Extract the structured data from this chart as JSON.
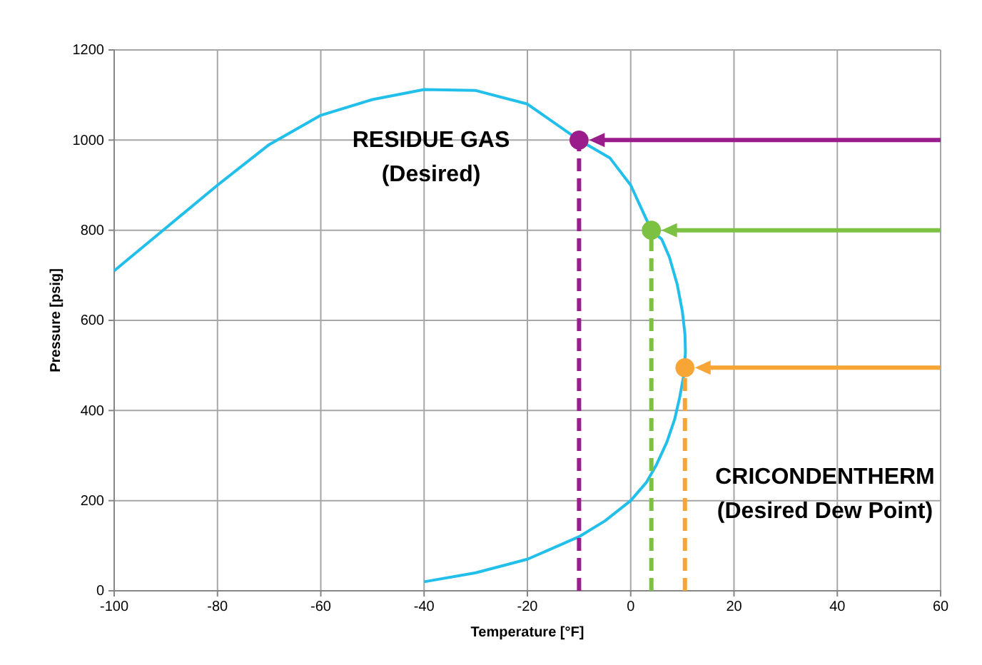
{
  "chart_data": {
    "type": "line",
    "xlabel": "Temperature [°F]",
    "ylabel": "Pressure [psig]",
    "xlim": [
      -100,
      60
    ],
    "xticks": [
      -100,
      -80,
      -60,
      -40,
      -20,
      0,
      20,
      40,
      60
    ],
    "ylim": [
      0,
      1200
    ],
    "yticks": [
      0,
      200,
      400,
      600,
      800,
      1000,
      1200
    ],
    "grid": true,
    "series": [
      {
        "color": "#21bfea",
        "x": [
          -40,
          -30,
          -20,
          -10,
          -5,
          0,
          3,
          5,
          7,
          8.5,
          9.5,
          10.3,
          10.6,
          10.5,
          10,
          9,
          7.5,
          6,
          4,
          2,
          0,
          -4,
          -10,
          -20,
          -30,
          -40,
          -50,
          -60,
          -70,
          -80,
          -90,
          -100
        ],
        "values": [
          20,
          40,
          70,
          120,
          155,
          200,
          240,
          280,
          330,
          380,
          430,
          480,
          530,
          570,
          620,
          680,
          740,
          780,
          800,
          850,
          900,
          960,
          1000,
          1080,
          1110,
          1112,
          1090,
          1055,
          990,
          900,
          805,
          710
        ]
      },
      {
        "type": "line",
        "color": "#9b1d8c",
        "line_style": "dashed",
        "x": [
          -10,
          -10
        ],
        "values": [
          0,
          1000
        ]
      },
      {
        "type": "line",
        "color": "#7cc142",
        "line_style": "dashed",
        "x": [
          4,
          4
        ],
        "values": [
          0,
          800
        ]
      },
      {
        "type": "line",
        "color": "#f7a535",
        "line_style": "dashed",
        "x": [
          10.5,
          10.5
        ],
        "values": [
          0,
          495
        ]
      },
      {
        "type": "scatter",
        "marker": "circle",
        "color": "#9b1d8c",
        "x": [
          -10
        ],
        "values": [
          1000
        ]
      },
      {
        "type": "scatter",
        "marker": "circle",
        "color": "#7cc142",
        "x": [
          4
        ],
        "values": [
          800
        ]
      },
      {
        "type": "scatter",
        "marker": "circle",
        "color": "#f7a535",
        "x": [
          10.5
        ],
        "values": [
          495
        ]
      }
    ],
    "annotations": [
      "RESIDUE GAS\n(Desired)",
      "CRICONDENTHERM\n(Desired Dew Point)"
    ]
  }
}
